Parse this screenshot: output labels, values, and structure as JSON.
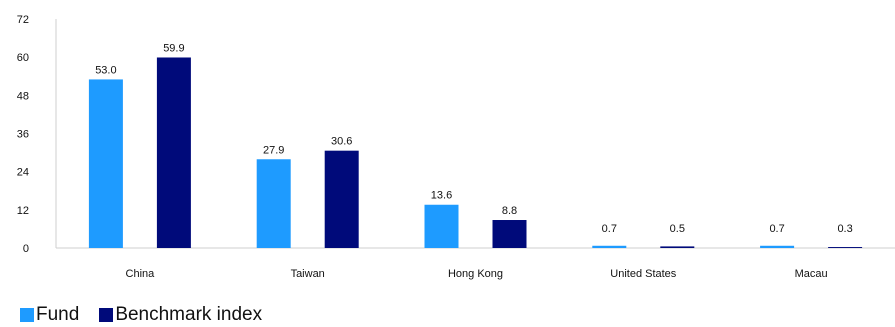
{
  "chart_data": {
    "type": "bar",
    "categories": [
      "China",
      "Taiwan",
      "Hong Kong",
      "United States",
      "Macau"
    ],
    "series": [
      {
        "name": "Fund",
        "values": [
          53.0,
          27.9,
          13.6,
          0.7,
          0.7
        ],
        "labels": [
          "53.0",
          "27.9",
          "13.6",
          "0.7",
          "0.7"
        ],
        "color": "#1e9bff"
      },
      {
        "name": "Benchmark index",
        "values": [
          59.9,
          30.6,
          8.8,
          0.5,
          0.3
        ],
        "labels": [
          "59.9",
          "30.6",
          "8.8",
          "0.5",
          "0.3"
        ],
        "color": "#000a7a"
      }
    ],
    "yticks": [
      "0",
      "12",
      "24",
      "36",
      "48",
      "60",
      "72"
    ],
    "ylim": [
      0,
      72
    ],
    "grid": false,
    "legend": "bottom-left"
  }
}
